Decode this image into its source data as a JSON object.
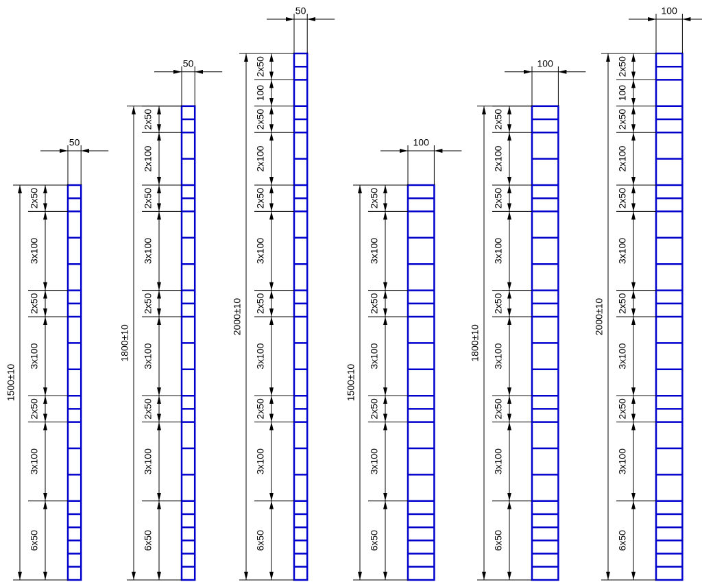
{
  "columns": [
    {
      "width": "50",
      "total": "1500±10",
      "segments": [
        "2x50",
        "3x100",
        "2x50",
        "3x100",
        "2x50",
        "3x100",
        "6x50"
      ]
    },
    {
      "width": "50",
      "total": "1800±10",
      "segments": [
        "2x50",
        "2x100",
        "2x50",
        "3x100",
        "2x50",
        "3x100",
        "2x50",
        "3x100",
        "6x50"
      ]
    },
    {
      "width": "50",
      "total": "2000±10",
      "segments": [
        "2x50",
        "100",
        "2x50",
        "2x100",
        "2x50",
        "3x100",
        "2x50",
        "3x100",
        "2x50",
        "3x100",
        "6x50"
      ]
    },
    {
      "width": "100",
      "total": "1500±10",
      "segments": [
        "2x50",
        "3x100",
        "2x50",
        "3x100",
        "2x50",
        "3x100",
        "6x50"
      ]
    },
    {
      "width": "100",
      "total": "1800±10",
      "segments": [
        "2x50",
        "2x100",
        "2x50",
        "3x100",
        "2x50",
        "3x100",
        "2x50",
        "3x100",
        "6x50"
      ]
    },
    {
      "width": "100",
      "total": "2000±10",
      "segments": [
        "2x50",
        "100",
        "2x50",
        "2x100",
        "2x50",
        "3x100",
        "2x50",
        "3x100",
        "2x50",
        "3x100",
        "6x50"
      ]
    }
  ]
}
